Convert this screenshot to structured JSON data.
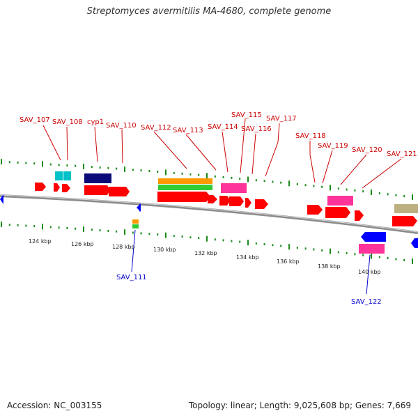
{
  "title": "Streptomyces avermitilis MA-4680, complete genome",
  "footer": {
    "accession": "Accession: NC_003155",
    "summary": "Topology: linear; Length: 9,025,608 bp; Genes: 7,669"
  },
  "colors": {
    "backbone": "#8c8c8c",
    "gene_forward": "#ff0000",
    "gene_reverse": "#0000ff",
    "cds_cyan": "#00c0c8",
    "cds_navy": "#0a0a78",
    "cds_orange": "#ff9900",
    "cds_green": "#33cc33",
    "cds_pink": "#ff3399",
    "cds_khaki": "#bdb080",
    "label_top": "#cc0000",
    "label_bottom": "#0000cc",
    "tick_green": "#1a8c1a"
  },
  "ticks": [
    "124 kbp",
    "126 kbp",
    "128 kbp",
    "130 kbp",
    "132 kbp",
    "134 kbp",
    "136 kbp",
    "138 kbp",
    "140 kbp"
  ],
  "gene_labels_top": [
    "SAV_107",
    "SAV_108",
    "cyp1",
    "SAV_110",
    "SAV_112",
    "SAV_113",
    "SAV_114",
    "SAV_115",
    "SAV_116",
    "SAV_117",
    "SAV_118",
    "SAV_119",
    "SAV_120",
    "SAV_121"
  ],
  "gene_labels_bottom": [
    "SAV_111",
    "SAV_122"
  ]
}
